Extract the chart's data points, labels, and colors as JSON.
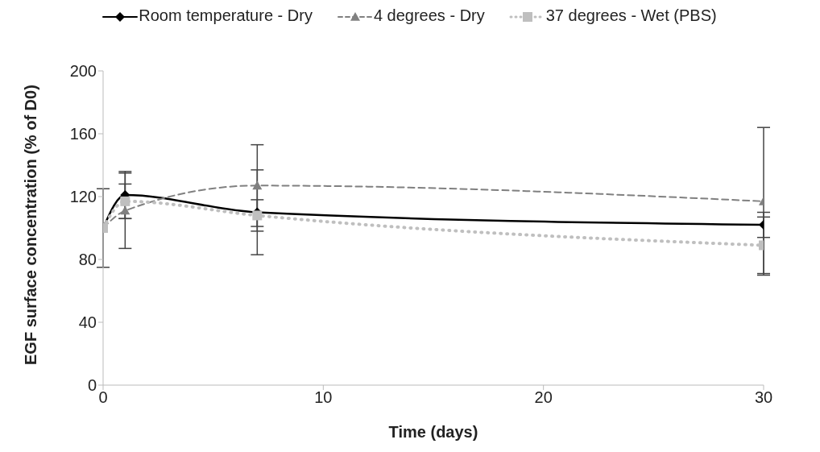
{
  "chart_data": {
    "type": "line",
    "xlabel": "Time (days)",
    "ylabel": "EGF surface concentration  (% of D0)",
    "x": [
      0,
      1,
      7,
      30
    ],
    "series": [
      {
        "name": "Room temperature - Dry",
        "color": "#000000",
        "marker": "diamond",
        "line_style": "solid",
        "values": [
          100,
          121,
          110,
          102
        ],
        "errors": [
          25,
          15,
          27,
          8
        ]
      },
      {
        "name": "4 degrees - Dry",
        "color": "#808080",
        "marker": "triangle",
        "line_style": "dashed",
        "values": [
          100,
          111,
          127,
          117
        ],
        "errors": [
          null,
          24,
          26,
          47
        ]
      },
      {
        "name": "37 degrees - Wet (PBS)",
        "color": "#bfbfbf",
        "marker": "square",
        "line_style": "dotted",
        "values": [
          100,
          117,
          108,
          89
        ],
        "errors": [
          null,
          11,
          10,
          18
        ]
      }
    ],
    "xlim": [
      0,
      30
    ],
    "xticks": [
      0,
      10,
      20,
      30
    ],
    "ylim": [
      0,
      200
    ],
    "yticks": [
      0,
      40,
      80,
      120,
      160,
      200
    ],
    "grid": false,
    "legend": "top"
  }
}
